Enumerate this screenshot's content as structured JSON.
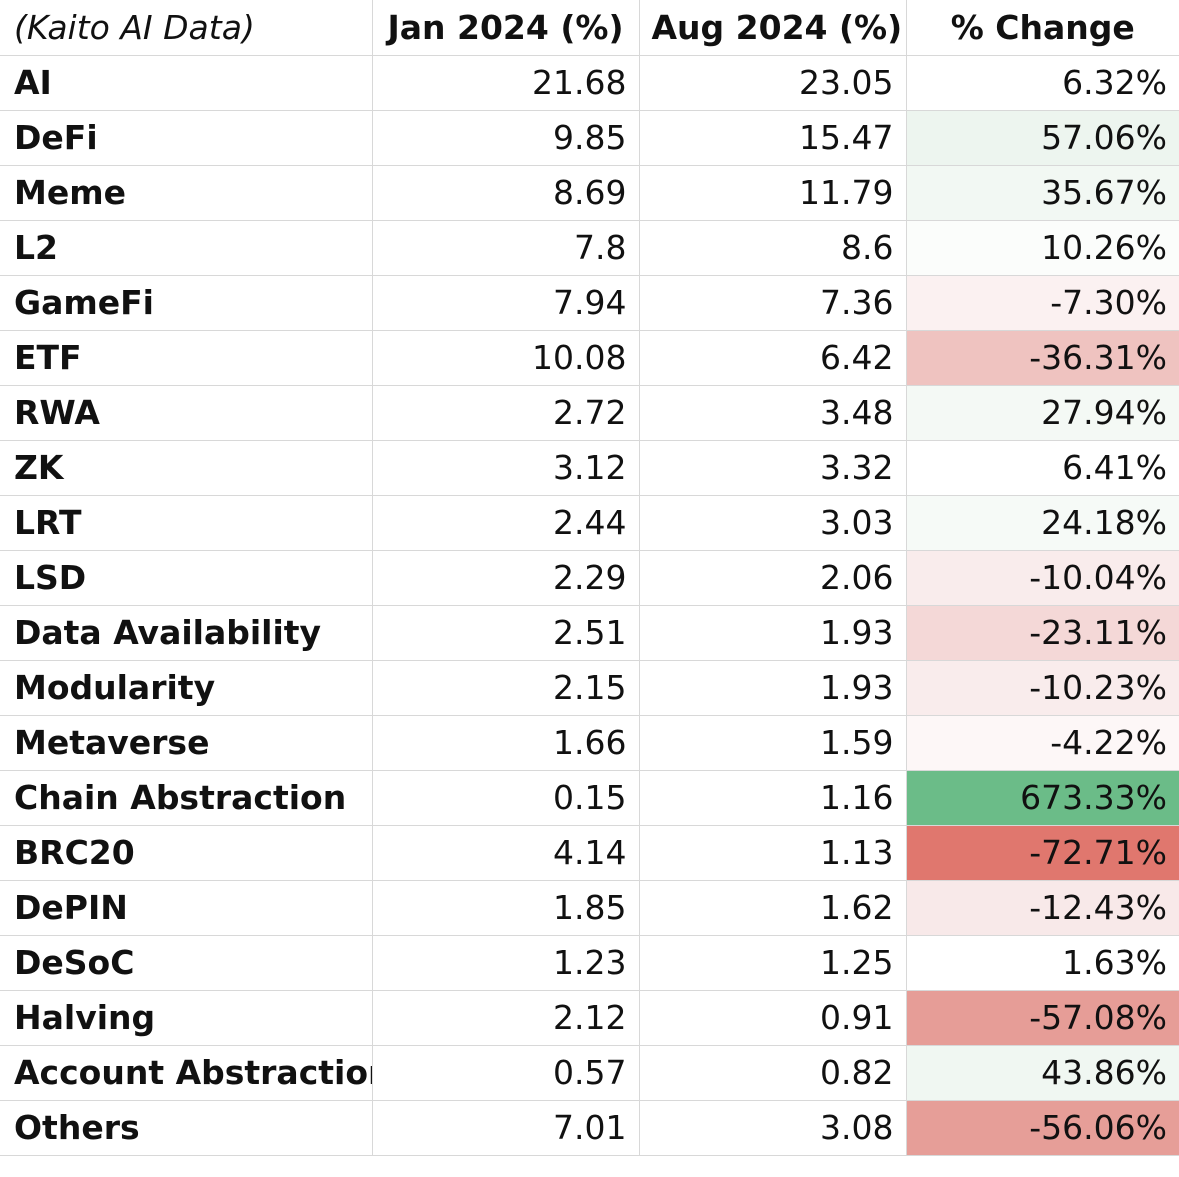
{
  "table": {
    "headers": {
      "label": "(Kaito AI Data)",
      "jan": "Jan 2024 (%)",
      "aug": "Aug 2024 (%)",
      "change": "% Change"
    },
    "rows": [
      {
        "label": "AI",
        "jan": "21.68",
        "aug": "23.05",
        "change": "6.32%",
        "bg": "#ffffff"
      },
      {
        "label": "DeFi",
        "jan": "9.85",
        "aug": "15.47",
        "change": "57.06%",
        "bg": "#edf5ef"
      },
      {
        "label": "Meme",
        "jan": "8.69",
        "aug": "11.79",
        "change": "35.67%",
        "bg": "#f2f8f3"
      },
      {
        "label": "L2",
        "jan": "7.8",
        "aug": "8.6",
        "change": "10.26%",
        "bg": "#fbfdfb"
      },
      {
        "label": "GameFi",
        "jan": "7.94",
        "aug": "7.36",
        "change": "-7.30%",
        "bg": "#fbf1f1"
      },
      {
        "label": "ETF",
        "jan": "10.08",
        "aug": "6.42",
        "change": "-36.31%",
        "bg": "#efc3c0"
      },
      {
        "label": "RWA",
        "jan": "2.72",
        "aug": "3.48",
        "change": "27.94%",
        "bg": "#f4f9f5"
      },
      {
        "label": "ZK",
        "jan": "3.12",
        "aug": "3.32",
        "change": "6.41%",
        "bg": "#ffffff"
      },
      {
        "label": "LRT",
        "jan": "2.44",
        "aug": "3.03",
        "change": "24.18%",
        "bg": "#f6faf7"
      },
      {
        "label": "LSD",
        "jan": "2.29",
        "aug": "2.06",
        "change": "-10.04%",
        "bg": "#f9ecec"
      },
      {
        "label": "Data Availability",
        "jan": "2.51",
        "aug": "1.93",
        "change": "-23.11%",
        "bg": "#f4d8d7"
      },
      {
        "label": "Modularity",
        "jan": "2.15",
        "aug": "1.93",
        "change": "-10.23%",
        "bg": "#f9ecec"
      },
      {
        "label": "Metaverse",
        "jan": "1.66",
        "aug": "1.59",
        "change": "-4.22%",
        "bg": "#fdf7f7"
      },
      {
        "label": "Chain Abstraction",
        "jan": "0.15",
        "aug": "1.16",
        "change": "673.33%",
        "bg": "#6bbc88"
      },
      {
        "label": "BRC20",
        "jan": "4.14",
        "aug": "1.13",
        "change": "-72.71%",
        "bg": "#e0776e"
      },
      {
        "label": "DePIN",
        "jan": "1.85",
        "aug": "1.62",
        "change": "-12.43%",
        "bg": "#f8e9e9"
      },
      {
        "label": "DeSoC",
        "jan": "1.23",
        "aug": "1.25",
        "change": "1.63%",
        "bg": "#ffffff"
      },
      {
        "label": "Halving",
        "jan": "2.12",
        "aug": "0.91",
        "change": "-57.08%",
        "bg": "#e69d97"
      },
      {
        "label": "Account Abstraction",
        "jan": "0.57",
        "aug": "0.82",
        "change": "43.86%",
        "bg": "#f0f7f2"
      },
      {
        "label": "Others",
        "jan": "7.01",
        "aug": "3.08",
        "change": "-56.06%",
        "bg": "#e69e98"
      }
    ]
  }
}
